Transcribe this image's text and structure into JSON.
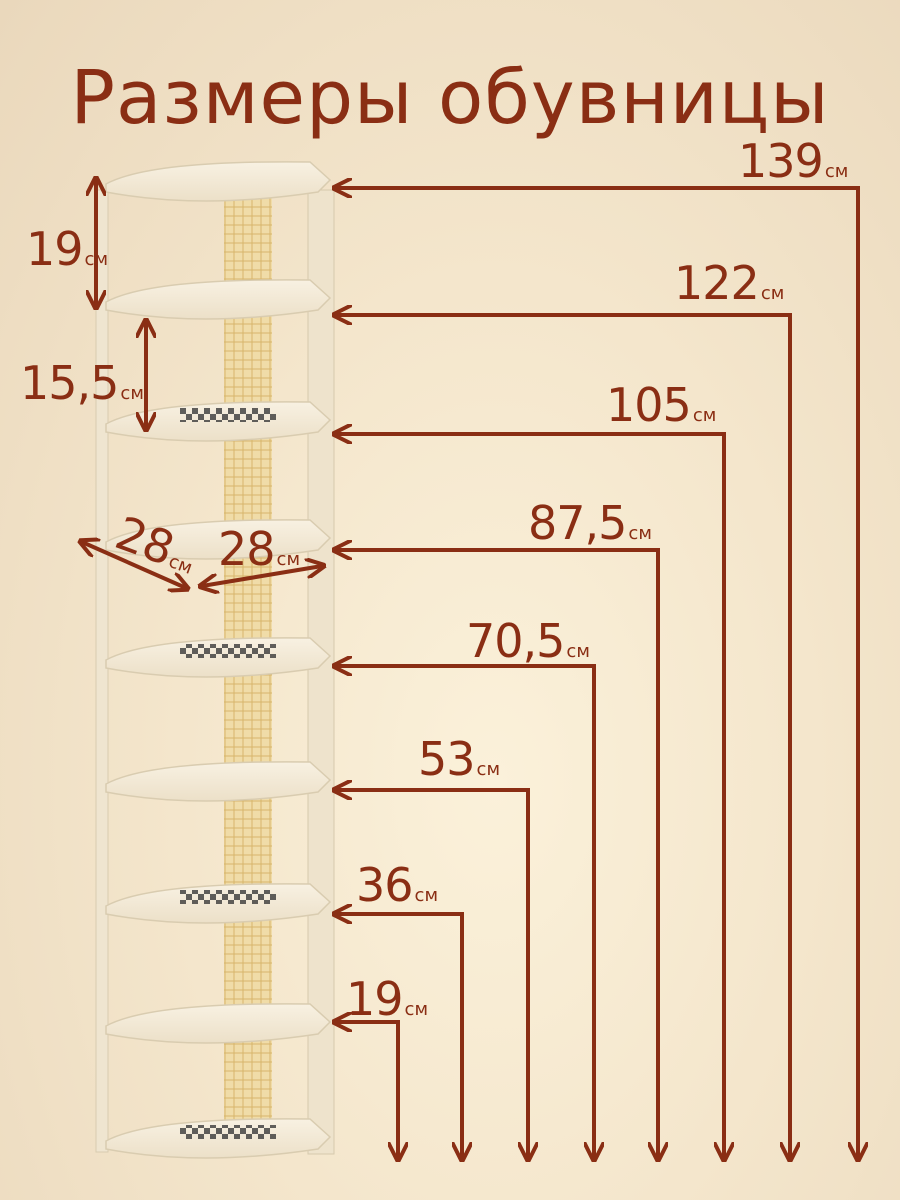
{
  "title": "Размеры обувницы",
  "colors": {
    "accent": "#8a2e14",
    "shelf": "#f3ead7",
    "pole": "#e6c98a"
  },
  "unit": "см",
  "heights": [
    {
      "value": "139",
      "unit": "см"
    },
    {
      "value": "122",
      "unit": "см"
    },
    {
      "value": "105",
      "unit": "см"
    },
    {
      "value": "87,5",
      "unit": "см"
    },
    {
      "value": "70,5",
      "unit": "см"
    },
    {
      "value": "53",
      "unit": "см"
    },
    {
      "value": "36",
      "unit": "см"
    },
    {
      "value": "19",
      "unit": "см"
    }
  ],
  "gaps": {
    "top": {
      "value": "19",
      "unit": "см"
    },
    "second": {
      "value": "15,5",
      "unit": "см"
    }
  },
  "widths": {
    "depth": {
      "value": "28",
      "unit": "см"
    },
    "width": {
      "value": "28",
      "unit": "см"
    }
  }
}
